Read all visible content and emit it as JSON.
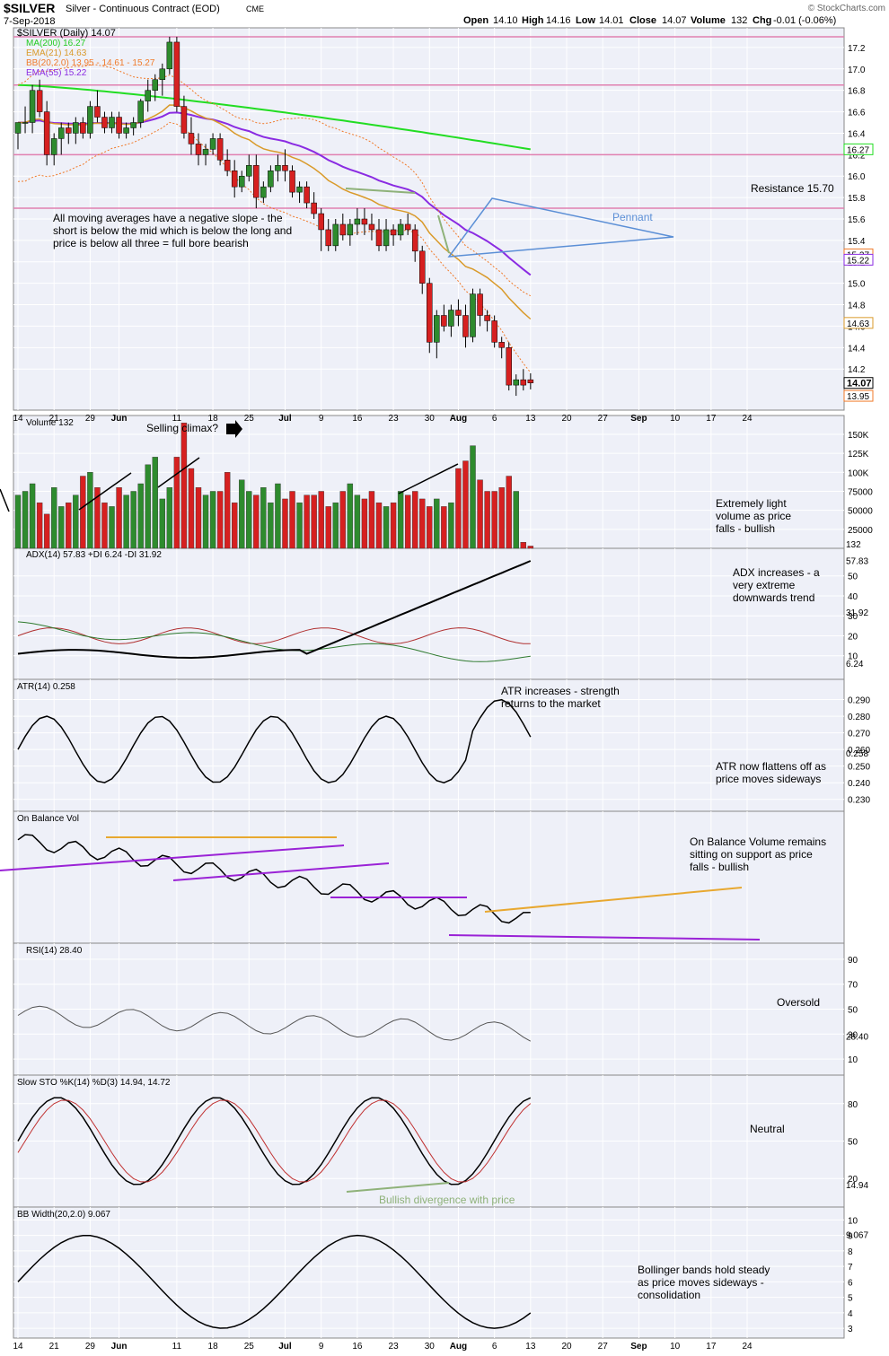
{
  "header": {
    "symbol": "$SILVER",
    "name": "Silver - Continuous Contract (EOD)",
    "exchange": "CME",
    "date": "7-Sep-2018",
    "copyright": "© StockCharts.com",
    "ohlc": {
      "open_label": "Open",
      "open": "14.10",
      "high_label": "High",
      "high": "14.16",
      "low_label": "Low",
      "low": "14.01",
      "close_label": "Close",
      "close": "14.07",
      "volume_label": "Volume",
      "volume": "132",
      "chg_label": "Chg",
      "chg": "-0.01 (-0.06%)"
    }
  },
  "colors": {
    "up": "#2e8b2e",
    "down": "#d62020",
    "ma200": "#22dd22",
    "ema21": "#d99a2a",
    "bb": "#f07a2a",
    "ema55": "#8a2be2",
    "hline": "#e080b0",
    "panel_bg": "#eef0f8",
    "grid": "#ffffff",
    "pennant": "#5b8fd6",
    "annotation_green": "#8fb27a",
    "support": "#9a22d6",
    "resistance_orange": "#e8a830"
  },
  "x_axis": {
    "labels": [
      "14",
      "21",
      "29",
      "Jun",
      "11",
      "18",
      "25",
      "Jul",
      "9",
      "16",
      "23",
      "30",
      "Aug",
      "6",
      "13",
      "20",
      "27",
      "Sep",
      "10",
      "17",
      "24"
    ],
    "label_bars": [
      0,
      5,
      10,
      14,
      22,
      27,
      32,
      37,
      42,
      47,
      52,
      57,
      61,
      66,
      71,
      76,
      81,
      86,
      91,
      96,
      101
    ],
    "bold_labels": [
      "Jun",
      "Jul",
      "Aug",
      "Sep"
    ]
  },
  "chart_data": [
    {
      "type": "candlestick",
      "title": "$SILVER (Daily) 14.07",
      "legend": [
        "MA(200) 16.27",
        "EMA(21) 14.63",
        "BB(20,2.0) 13.95 - 14.61 - 15.27",
        "EMA(55) 15.22"
      ],
      "ylim": [
        13.85,
        17.35
      ],
      "yticks": [
        14.2,
        14.4,
        14.6,
        14.8,
        15.0,
        15.2,
        15.4,
        15.6,
        15.8,
        16.0,
        16.2,
        16.4,
        16.6,
        16.8,
        17.0,
        17.2
      ],
      "candles": [
        [
          16.4,
          16.5,
          16.25,
          16.5
        ],
        [
          16.5,
          16.65,
          16.4,
          16.5
        ],
        [
          16.5,
          16.85,
          16.4,
          16.8
        ],
        [
          16.8,
          16.9,
          16.55,
          16.6
        ],
        [
          16.6,
          16.7,
          16.1,
          16.2
        ],
        [
          16.2,
          16.4,
          16.1,
          16.35
        ],
        [
          16.35,
          16.5,
          16.2,
          16.45
        ],
        [
          16.45,
          16.5,
          16.3,
          16.4
        ],
        [
          16.4,
          16.55,
          16.3,
          16.5
        ],
        [
          16.5,
          16.55,
          16.35,
          16.4
        ],
        [
          16.4,
          16.7,
          16.35,
          16.65
        ],
        [
          16.65,
          16.8,
          16.5,
          16.55
        ],
        [
          16.55,
          16.6,
          16.4,
          16.45
        ],
        [
          16.45,
          16.6,
          16.4,
          16.55
        ],
        [
          16.55,
          16.6,
          16.35,
          16.4
        ],
        [
          16.4,
          16.5,
          16.35,
          16.45
        ],
        [
          16.45,
          16.55,
          16.38,
          16.5
        ],
        [
          16.5,
          16.72,
          16.45,
          16.7
        ],
        [
          16.7,
          16.9,
          16.6,
          16.8
        ],
        [
          16.8,
          16.95,
          16.7,
          16.9
        ],
        [
          16.9,
          17.05,
          16.75,
          17.0
        ],
        [
          17.0,
          17.3,
          16.95,
          17.25
        ],
        [
          17.25,
          17.3,
          16.6,
          16.65
        ],
        [
          16.65,
          16.75,
          16.35,
          16.4
        ],
        [
          16.4,
          16.55,
          16.2,
          16.3
        ],
        [
          16.3,
          16.4,
          16.1,
          16.2
        ],
        [
          16.2,
          16.3,
          16.1,
          16.25
        ],
        [
          16.25,
          16.4,
          16.2,
          16.35
        ],
        [
          16.35,
          16.4,
          16.1,
          16.15
        ],
        [
          16.15,
          16.25,
          16.0,
          16.05
        ],
        [
          16.05,
          16.15,
          15.8,
          15.9
        ],
        [
          15.9,
          16.05,
          15.85,
          16.0
        ],
        [
          16.0,
          16.2,
          15.95,
          16.1
        ],
        [
          16.1,
          16.2,
          15.7,
          15.8
        ],
        [
          15.8,
          15.95,
          15.75,
          15.9
        ],
        [
          15.9,
          16.1,
          15.85,
          16.05
        ],
        [
          16.05,
          16.2,
          15.95,
          16.1
        ],
        [
          16.1,
          16.25,
          15.95,
          16.05
        ],
        [
          16.05,
          16.1,
          15.8,
          15.85
        ],
        [
          15.85,
          15.95,
          15.75,
          15.9
        ],
        [
          15.9,
          15.95,
          15.7,
          15.75
        ],
        [
          15.75,
          15.85,
          15.6,
          15.65
        ],
        [
          15.65,
          15.7,
          15.3,
          15.5
        ],
        [
          15.5,
          15.6,
          15.3,
          15.35
        ],
        [
          15.35,
          15.6,
          15.3,
          15.55
        ],
        [
          15.55,
          15.65,
          15.4,
          15.45
        ],
        [
          15.45,
          15.6,
          15.35,
          15.55
        ],
        [
          15.55,
          15.7,
          15.45,
          15.6
        ],
        [
          15.6,
          15.7,
          15.45,
          15.55
        ],
        [
          15.55,
          15.65,
          15.4,
          15.5
        ],
        [
          15.5,
          15.6,
          15.3,
          15.35
        ],
        [
          15.35,
          15.6,
          15.3,
          15.5
        ],
        [
          15.5,
          15.55,
          15.35,
          15.45
        ],
        [
          15.45,
          15.6,
          15.4,
          15.55
        ],
        [
          15.55,
          15.65,
          15.45,
          15.5
        ],
        [
          15.5,
          15.55,
          15.2,
          15.3
        ],
        [
          15.3,
          15.35,
          14.9,
          15.0
        ],
        [
          15.0,
          15.05,
          14.35,
          14.45
        ],
        [
          14.45,
          14.75,
          14.3,
          14.7
        ],
        [
          14.7,
          14.8,
          14.55,
          14.6
        ],
        [
          14.6,
          14.8,
          14.5,
          14.75
        ],
        [
          14.75,
          14.85,
          14.6,
          14.7
        ],
        [
          14.7,
          14.8,
          14.4,
          14.5
        ],
        [
          14.5,
          14.95,
          14.45,
          14.9
        ],
        [
          14.9,
          14.95,
          14.6,
          14.7
        ],
        [
          14.7,
          14.75,
          14.55,
          14.65
        ],
        [
          14.65,
          14.7,
          14.4,
          14.45
        ],
        [
          14.45,
          14.5,
          14.3,
          14.4
        ],
        [
          14.4,
          14.45,
          14.0,
          14.05
        ],
        [
          14.05,
          14.15,
          13.95,
          14.1
        ],
        [
          14.1,
          14.2,
          14.0,
          14.05
        ],
        [
          14.1,
          14.16,
          14.01,
          14.07
        ]
      ],
      "ma200": [
        16.85,
        16.6,
        16.25
      ],
      "ema21_end": 14.63,
      "ema55_end": 15.22,
      "bb_end": [
        13.95,
        14.61,
        15.27
      ],
      "hlines": [
        17.3,
        16.85,
        16.2,
        15.7
      ],
      "price_tag": "14.07"
    },
    {
      "type": "bar",
      "title": "Volume 132",
      "yticks_labels": [
        "150K",
        "125K",
        "100K",
        "75000",
        "50000",
        "25000"
      ],
      "yticks": [
        150000,
        125000,
        100000,
        75000,
        50000,
        25000
      ],
      "ylim": [
        0,
        170000
      ],
      "last_tag": "132"
    },
    {
      "type": "line",
      "title": "ADX(14) 57.83 +DI 6.24 -DI 31.92",
      "yticks": [
        10,
        20,
        30,
        40,
        50
      ],
      "ylim": [
        0,
        62
      ],
      "tags": [
        "57.83",
        "31.92",
        "6.24"
      ]
    },
    {
      "type": "line",
      "title": "ATR(14) 0.258",
      "yticks": [
        0.23,
        0.24,
        0.25,
        0.26,
        0.27,
        0.28,
        0.29
      ],
      "ytick_labels": [
        "0.230",
        "0.240",
        "0.250",
        "0.260",
        "0.270",
        "0.280",
        "0.290"
      ],
      "ylim": [
        0.225,
        0.3
      ],
      "tag": "0.258"
    },
    {
      "type": "line",
      "title": "On Balance Vol"
    },
    {
      "type": "line",
      "title": "RSI(14) 28.40",
      "yticks": [
        10,
        30,
        50,
        70,
        90
      ],
      "ylim": [
        0,
        100
      ],
      "tag": "28.40"
    },
    {
      "type": "line",
      "title": "Slow STO %K(14) %D(3) 14.94, 14.72",
      "yticks": [
        20,
        50,
        80
      ],
      "ylim": [
        0,
        100
      ],
      "tag": "14.94"
    },
    {
      "type": "line",
      "title": "BB Width(20,2.0) 9.067",
      "yticks": [
        3,
        4,
        5,
        6,
        7,
        8,
        9,
        10
      ],
      "ylim": [
        2.6,
        10.6
      ],
      "tag": "9.067"
    }
  ],
  "annotations": {
    "ma_comment": "All moving averages have a negative slope - the short is below the mid which is below the long and price is below all three = full bore bearish",
    "resistance": "Resistance 15.70",
    "pennant": "Pennant",
    "selling_climax": "Selling climax?",
    "volume_comment": "Extremely light volume as price falls - bullish",
    "adx_comment": "ADX increases - a very extreme downwards trend",
    "atr_comment_top": "ATR increases - strength returns to the market",
    "atr_comment_bottom": "ATR now flattens off as price moves sideways",
    "obv_comment": "On Balance Volume remains sitting on support as price falls - bullish",
    "rsi_comment": "Oversold",
    "sto_comment": "Neutral",
    "sto_divergence": "Bullish divergence with price",
    "bbw_comment": "Bollinger bands hold steady as price moves sideways - consolidation"
  }
}
